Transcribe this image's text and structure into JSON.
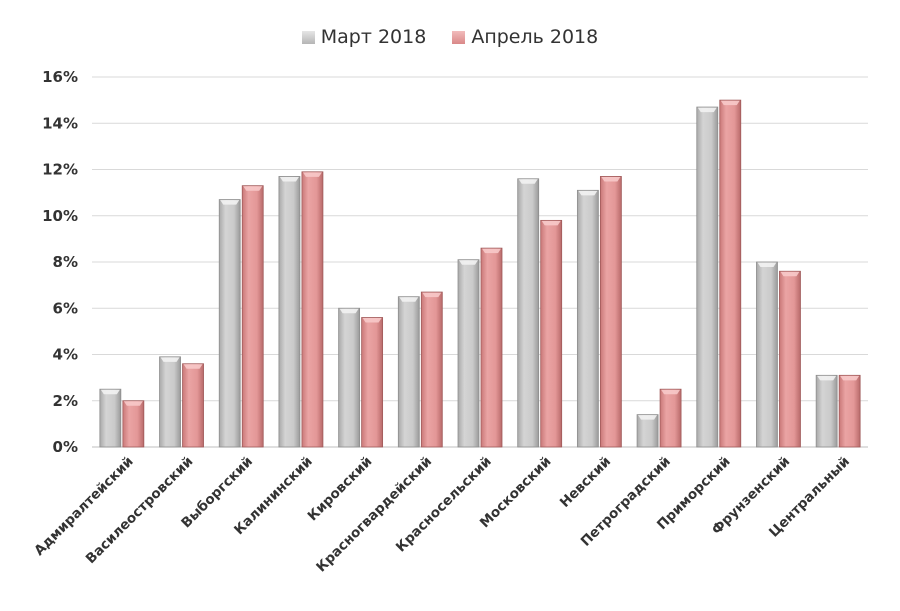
{
  "chart_data": {
    "type": "bar",
    "title": "",
    "xlabel": "",
    "ylabel": "",
    "ylim": [
      0,
      16
    ],
    "yticks": [
      "0%",
      "2%",
      "4%",
      "6%",
      "8%",
      "10%",
      "12%",
      "14%",
      "16%"
    ],
    "grid": true,
    "legend_position": "top",
    "categories": [
      "Адмиралтейский",
      "Василеостровский",
      "Выборгский",
      "Калининский",
      "Кировский",
      "Красногвардейский",
      "Красносельский",
      "Московский",
      "Невский",
      "Петроградский",
      "Приморский",
      "Фрунзенский",
      "Центральный"
    ],
    "series": [
      {
        "name": "Март 2018",
        "color": "#c6c6c6",
        "values": [
          2.5,
          3.9,
          10.7,
          11.7,
          6.0,
          6.5,
          8.1,
          11.6,
          11.1,
          1.4,
          14.7,
          8.0,
          3.1
        ]
      },
      {
        "name": "Апрель 2018",
        "color": "#e59a9a",
        "values": [
          2.0,
          3.6,
          11.3,
          11.9,
          5.6,
          6.7,
          8.6,
          9.8,
          11.7,
          2.5,
          15.0,
          7.6,
          3.1
        ]
      }
    ]
  }
}
